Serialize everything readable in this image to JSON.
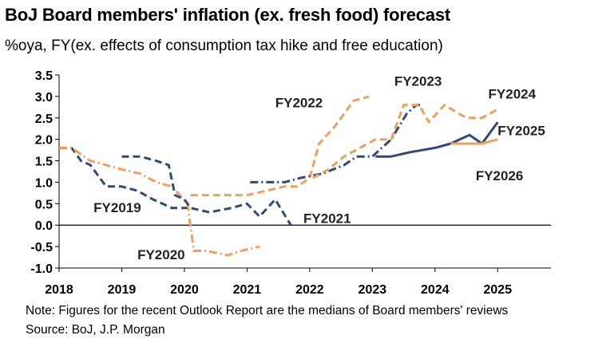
{
  "header": {
    "title": "BoJ Board members' inflation (ex. fresh food) forecast",
    "subtitle": "%oya, FY(ex. effects of consumption tax hike and free education)"
  },
  "footer": {
    "note": "Note: Figures for the recent Outlook Report are the medians of Board members' reviews",
    "source": "Source: BoJ, J.P. Morgan"
  },
  "colors": {
    "navy": "#2e4a7d",
    "orange": "#f0a05a"
  },
  "chart_data": {
    "type": "line",
    "title": "BoJ Board members' inflation (ex. fresh food) forecast",
    "ylabel": "%oya, FY(ex. effects of consumption tax hike and free education)",
    "xlim": [
      2018,
      2025.85
    ],
    "ylim": [
      -1.0,
      3.5
    ],
    "x_ticks": [
      2018,
      2019,
      2020,
      2021,
      2022,
      2023,
      2024,
      2025
    ],
    "y_ticks": [
      -1.0,
      -0.5,
      0.0,
      0.5,
      1.0,
      1.5,
      2.0,
      2.5,
      3.0,
      3.5
    ],
    "y_tick_labels": [
      "-1.0",
      "-0.5",
      "0.0",
      "0.5",
      "1.0",
      "1.5",
      "2.0",
      "2.5",
      "3.0",
      "3.5"
    ],
    "grid": false,
    "series": [
      {
        "name": "FY2019",
        "color": "#2e4a7d",
        "style": "dashed",
        "points": [
          [
            2018.0,
            1.8
          ],
          [
            2018.2,
            1.8
          ],
          [
            2018.35,
            1.5
          ],
          [
            2018.5,
            1.4
          ],
          [
            2018.75,
            0.9
          ],
          [
            2019.0,
            0.9
          ],
          [
            2019.25,
            0.8
          ],
          [
            2019.5,
            0.6
          ],
          [
            2019.8,
            0.4
          ],
          [
            2020.05,
            0.4
          ]
        ]
      },
      {
        "name": "FY2020",
        "color": "#f0a05a",
        "style": "dashdot",
        "points": [
          [
            2018.0,
            1.8
          ],
          [
            2018.2,
            1.8
          ],
          [
            2018.5,
            1.5
          ],
          [
            2018.75,
            1.4
          ],
          [
            2019.0,
            1.3
          ],
          [
            2019.3,
            1.2
          ],
          [
            2019.55,
            1.0
          ],
          [
            2019.8,
            0.9
          ],
          [
            2020.05,
            0.5
          ],
          [
            2020.15,
            -0.6
          ],
          [
            2020.35,
            -0.6
          ],
          [
            2020.7,
            -0.7
          ],
          [
            2020.9,
            -0.6
          ],
          [
            2021.2,
            -0.5
          ]
        ]
      },
      {
        "name": "FY2021",
        "color": "#2e4a7d",
        "style": "dashed",
        "points": [
          [
            2019.0,
            1.6
          ],
          [
            2019.3,
            1.6
          ],
          [
            2019.55,
            1.5
          ],
          [
            2019.75,
            1.4
          ],
          [
            2019.85,
            0.7
          ],
          [
            2020.0,
            0.6
          ],
          [
            2020.1,
            0.4
          ],
          [
            2020.4,
            0.3
          ],
          [
            2020.75,
            0.4
          ],
          [
            2021.0,
            0.5
          ],
          [
            2021.2,
            0.2
          ],
          [
            2021.45,
            0.6
          ],
          [
            2021.7,
            0.0
          ]
        ]
      },
      {
        "name": "FY2022",
        "color": "#f0a05a",
        "style": "dashed",
        "points": [
          [
            2020.1,
            0.7
          ],
          [
            2020.5,
            0.7
          ],
          [
            2021.0,
            0.7
          ],
          [
            2021.3,
            0.8
          ],
          [
            2021.6,
            0.9
          ],
          [
            2021.8,
            0.9
          ],
          [
            2022.0,
            1.1
          ],
          [
            2022.15,
            1.9
          ],
          [
            2022.4,
            2.3
          ],
          [
            2022.7,
            2.9
          ],
          [
            2022.95,
            3.0
          ]
        ]
      },
      {
        "name": "FY2023",
        "color": "#2e4a7d",
        "style": "dashdot",
        "points": [
          [
            2021.05,
            1.0
          ],
          [
            2021.3,
            1.0
          ],
          [
            2021.6,
            1.0
          ],
          [
            2021.85,
            1.1
          ],
          [
            2022.2,
            1.2
          ],
          [
            2022.55,
            1.4
          ],
          [
            2022.75,
            1.6
          ],
          [
            2023.0,
            1.6
          ],
          [
            2023.3,
            2.0
          ],
          [
            2023.55,
            2.6
          ],
          [
            2023.7,
            2.8
          ],
          [
            2023.8,
            2.8
          ]
        ]
      },
      {
        "name": "FY2024",
        "color": "#f0a05a",
        "style": "dashed",
        "points": [
          [
            2022.05,
            1.1
          ],
          [
            2022.3,
            1.3
          ],
          [
            2022.55,
            1.6
          ],
          [
            2022.8,
            1.8
          ],
          [
            2023.05,
            2.0
          ],
          [
            2023.3,
            2.0
          ],
          [
            2023.5,
            2.8
          ],
          [
            2023.75,
            2.8
          ],
          [
            2023.9,
            2.4
          ],
          [
            2024.15,
            2.8
          ],
          [
            2024.5,
            2.5
          ],
          [
            2024.75,
            2.5
          ],
          [
            2025.0,
            2.7
          ]
        ]
      },
      {
        "name": "FY2025",
        "color": "#2e4a7d",
        "style": "solid",
        "points": [
          [
            2023.05,
            1.6
          ],
          [
            2023.3,
            1.6
          ],
          [
            2023.6,
            1.7
          ],
          [
            2024.0,
            1.8
          ],
          [
            2024.25,
            1.9
          ],
          [
            2024.55,
            2.1
          ],
          [
            2024.75,
            1.9
          ],
          [
            2025.0,
            2.4
          ]
        ]
      },
      {
        "name": "FY2026",
        "color": "#f0a05a",
        "style": "solid",
        "points": [
          [
            2024.25,
            1.9
          ],
          [
            2024.5,
            1.9
          ],
          [
            2024.75,
            1.9
          ],
          [
            2025.0,
            2.0
          ]
        ]
      }
    ],
    "annotations": [
      {
        "text": "FY2019",
        "x": 2018.55,
        "y": 0.3
      },
      {
        "text": "FY2020",
        "x": 2019.25,
        "y": -0.8
      },
      {
        "text": "FY2021",
        "x": 2021.9,
        "y": 0.05
      },
      {
        "text": "FY2022",
        "x": 2021.45,
        "y": 2.75
      },
      {
        "text": "FY2023",
        "x": 2023.35,
        "y": 3.25
      },
      {
        "text": "FY2024",
        "x": 2024.85,
        "y": 2.95
      },
      {
        "text": "FY2025",
        "x": 2025.0,
        "y": 2.1
      },
      {
        "text": "FY2026",
        "x": 2024.65,
        "y": 1.05
      }
    ]
  }
}
